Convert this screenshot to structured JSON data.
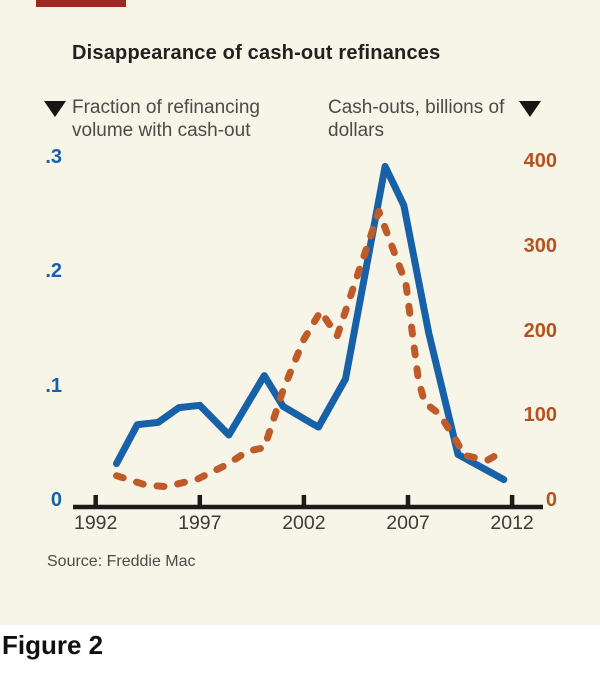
{
  "figure": {
    "title": "Disappearance of cash-out refinances",
    "source": "Source: Freddie Mac",
    "caption": "Figure 2"
  },
  "legend": {
    "left_line1": "Fraction of refinancing",
    "left_line2": "volume with cash-out",
    "right_line1": "Cash-outs, billions of",
    "right_line2": "dollars"
  },
  "colors": {
    "background": "#f7f4e8",
    "accent_bar": "#9e2721",
    "blue_series": "#1661a8",
    "orange_series": "#bf5b28",
    "orange_axis_labels": "#b5531f",
    "axis_line": "#1b1b19"
  },
  "chart_data": {
    "type": "line",
    "title": "Disappearance of cash-out refinances",
    "grid": "off",
    "x_axis": {
      "ticks": [
        1992,
        1997,
        2002,
        2007,
        2012
      ],
      "range": [
        1991,
        2013
      ]
    },
    "y_axis_left": {
      "label": "Fraction of refinancing volume with cash-out",
      "range": [
        0,
        0.3
      ],
      "ticks": [
        {
          "label": ".3",
          "value": 0.3
        },
        {
          "label": ".2",
          "value": 0.2
        },
        {
          "label": ".1",
          "value": 0.1
        },
        {
          "label": "0",
          "value": 0
        }
      ]
    },
    "y_axis_right": {
      "label": "Cash-outs, billions of dollars",
      "range": [
        0,
        400
      ],
      "ticks": [
        {
          "label": "400",
          "value": 400
        },
        {
          "label": "300",
          "value": 300
        },
        {
          "label": "200",
          "value": 200
        },
        {
          "label": "100",
          "value": 100
        },
        {
          "label": "0",
          "value": 0
        }
      ]
    },
    "series": [
      {
        "name": "Fraction of refinancing volume with cash-out",
        "axis": "left",
        "style": "solid",
        "color": "#1661a8",
        "points": [
          [
            1993.0,
            0.038
          ],
          [
            1994.0,
            0.072
          ],
          [
            1995.0,
            0.074
          ],
          [
            1996.0,
            0.087
          ],
          [
            1997.0,
            0.089
          ],
          [
            1998.4,
            0.063
          ],
          [
            2000.1,
            0.115
          ],
          [
            2001.0,
            0.088
          ],
          [
            2002.3,
            0.074
          ],
          [
            2002.7,
            0.07
          ],
          [
            2004.0,
            0.112
          ],
          [
            2005.9,
            0.298
          ],
          [
            2006.8,
            0.264
          ],
          [
            2008.0,
            0.152
          ],
          [
            2009.4,
            0.046
          ],
          [
            2010.2,
            0.038
          ],
          [
            2011.6,
            0.024
          ]
        ]
      },
      {
        "name": "Cash-outs, billions of dollars",
        "axis": "right",
        "style": "dashed",
        "color": "#bf5b28",
        "points": [
          [
            1993.0,
            37
          ],
          [
            1994.4,
            26
          ],
          [
            1995.4,
            24
          ],
          [
            1996.9,
            33
          ],
          [
            1998.3,
            50
          ],
          [
            1999.3,
            66
          ],
          [
            2000.1,
            70
          ],
          [
            2001.0,
            138
          ],
          [
            2002.0,
            198
          ],
          [
            2002.8,
            231
          ],
          [
            2003.6,
            202
          ],
          [
            2005.6,
            349
          ],
          [
            2006.9,
            264
          ],
          [
            2007.5,
            150
          ],
          [
            2007.8,
            123
          ],
          [
            2008.5,
            110
          ],
          [
            2009.3,
            79
          ],
          [
            2009.7,
            61
          ],
          [
            2010.8,
            55
          ],
          [
            2011.6,
            66
          ]
        ]
      }
    ]
  }
}
